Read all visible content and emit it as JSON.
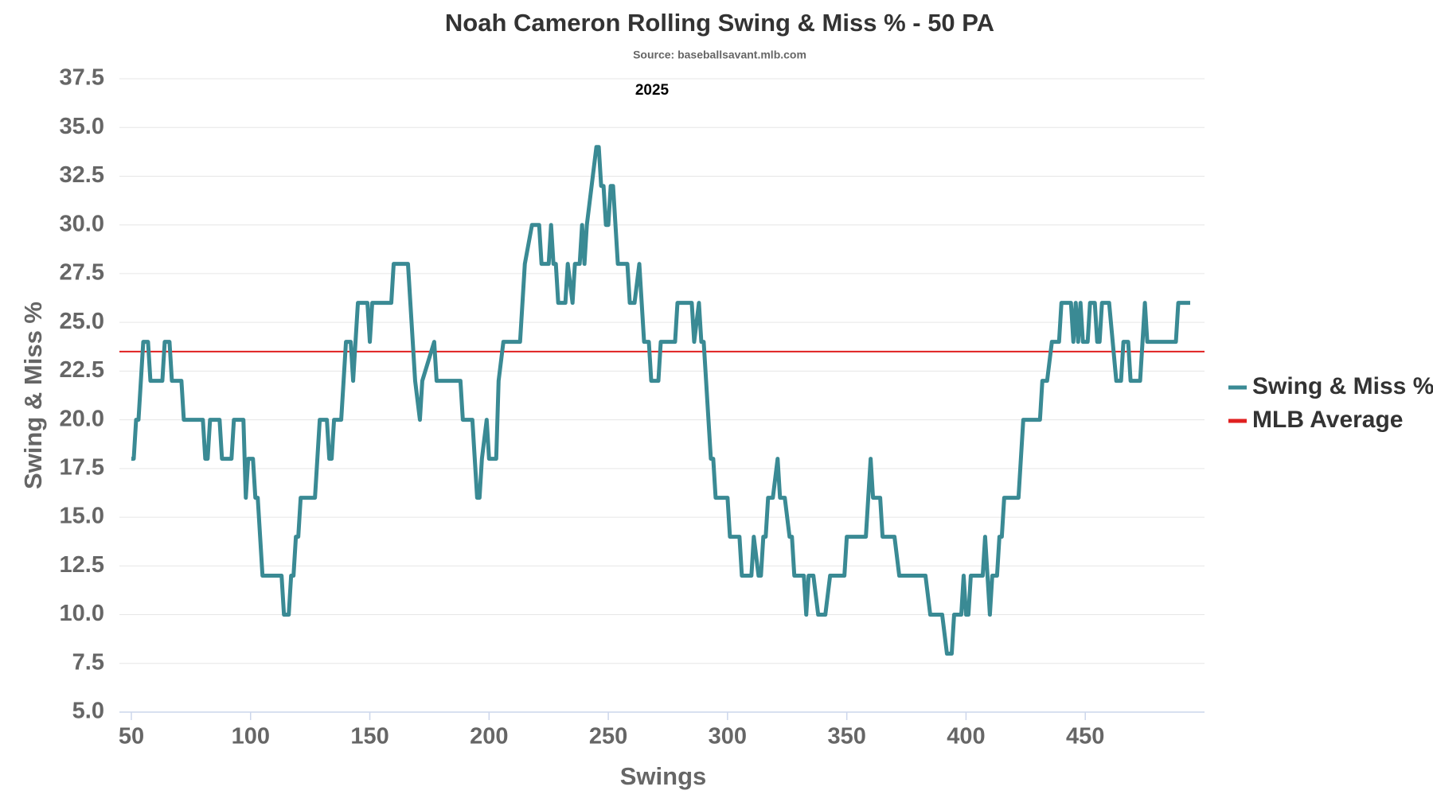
{
  "chart_data": {
    "type": "line",
    "title": "Noah Cameron Rolling Swing & Miss % - 50 PA",
    "subtitle": "Source: baseballsavant.mlb.com",
    "annotation": "2025",
    "x_label": "Swings",
    "y_label": "Swing & Miss %",
    "xlim": [
      45,
      500
    ],
    "ylim": [
      5,
      37.5
    ],
    "xticks": [
      50,
      100,
      150,
      200,
      250,
      300,
      350,
      400,
      450
    ],
    "yticks": [
      {
        "value": 5,
        "label": "5.0"
      },
      7.5,
      {
        "value": 10,
        "label": "10.0"
      },
      12.5,
      {
        "value": 15,
        "label": "15.0"
      },
      17.5,
      {
        "value": 20,
        "label": "20.0"
      },
      22.5,
      {
        "value": 25,
        "label": "25.0"
      },
      27.5,
      {
        "value": 30,
        "label": "30.0"
      },
      32.5,
      {
        "value": 35,
        "label": "35.0"
      },
      37.5
    ],
    "grid": true,
    "legend": "right",
    "series": [
      {
        "name": "Swing & Miss %",
        "color": "#3a8a94",
        "x": [
          50,
          51,
          52,
          53,
          55,
          57,
          58,
          63,
          64,
          66,
          67,
          71,
          72,
          80,
          81,
          82,
          83,
          87,
          88,
          92,
          93,
          97,
          98,
          99,
          101,
          102,
          103,
          105,
          113,
          114,
          116,
          117,
          118,
          119,
          120,
          121,
          127,
          129,
          132,
          133,
          134,
          135,
          138,
          140,
          142,
          143,
          144,
          145,
          149,
          150,
          151,
          159,
          160,
          166,
          169,
          171,
          172,
          177,
          178,
          188,
          189,
          193,
          195,
          196,
          197,
          199,
          200,
          203,
          204,
          206,
          213,
          215,
          218,
          221,
          222,
          225,
          226,
          227,
          228,
          229,
          232,
          233,
          235,
          236,
          238,
          239,
          240,
          241,
          243,
          245,
          246,
          247,
          248,
          249,
          250,
          251,
          252,
          254,
          258,
          259,
          261,
          263,
          265,
          267,
          268,
          271,
          272,
          278,
          279,
          285,
          286,
          288,
          289,
          290,
          291,
          293,
          294,
          295,
          300,
          301,
          305,
          306,
          310,
          311,
          313,
          314,
          315,
          316,
          317,
          319,
          321,
          322,
          324,
          326,
          327,
          328,
          332,
          333,
          334,
          336,
          338,
          341,
          343,
          349,
          350,
          358,
          359,
          360,
          361,
          364,
          365,
          370,
          372,
          383,
          385,
          390,
          392,
          394,
          395,
          398,
          399,
          400,
          401,
          402,
          407,
          408,
          410,
          411,
          413,
          414,
          415,
          416,
          422,
          424,
          431,
          432,
          434,
          436,
          439,
          440,
          444,
          445,
          446,
          447,
          448,
          449,
          451,
          452,
          454,
          455,
          456,
          457,
          460,
          463,
          465,
          466,
          468,
          469,
          473,
          475,
          476,
          488,
          489,
          494
        ],
        "values": [
          18,
          18,
          20,
          20,
          24,
          24,
          22,
          22,
          24,
          24,
          22,
          22,
          20,
          20,
          18,
          18,
          20,
          20,
          18,
          18,
          20,
          20,
          16,
          18,
          18,
          16,
          16,
          12,
          12,
          10,
          10,
          12,
          12,
          14,
          14,
          16,
          16,
          20,
          20,
          18,
          18,
          20,
          20,
          24,
          24,
          22,
          24,
          26,
          26,
          24,
          26,
          26,
          28,
          28,
          22,
          20,
          22,
          24,
          22,
          22,
          20,
          20,
          16,
          16,
          18,
          20,
          18,
          18,
          22,
          24,
          24,
          28,
          30,
          30,
          28,
          28,
          30,
          28,
          28,
          26,
          26,
          28,
          26,
          28,
          28,
          30,
          28,
          30,
          32,
          34,
          34,
          32,
          32,
          30,
          30,
          32,
          32,
          28,
          28,
          26,
          26,
          28,
          24,
          24,
          22,
          22,
          24,
          24,
          26,
          26,
          24,
          26,
          24,
          24,
          22,
          18,
          18,
          16,
          16,
          14,
          14,
          12,
          12,
          14,
          12,
          12,
          14,
          14,
          16,
          16,
          18,
          16,
          16,
          14,
          14,
          12,
          12,
          10,
          12,
          12,
          10,
          10,
          12,
          12,
          14,
          14,
          16,
          18,
          16,
          16,
          14,
          14,
          12,
          12,
          10,
          10,
          8,
          8,
          10,
          10,
          12,
          10,
          10,
          12,
          12,
          14,
          10,
          12,
          12,
          14,
          14,
          16,
          16,
          20,
          20,
          22,
          22,
          24,
          24,
          26,
          26,
          24,
          26,
          24,
          26,
          24,
          24,
          26,
          26,
          24,
          24,
          26,
          26,
          22,
          22,
          24,
          24,
          22,
          22,
          26,
          24,
          24,
          26,
          26
        ]
      }
    ],
    "reference_lines": [
      {
        "name": "MLB Average",
        "color": "#e02020",
        "value": 23.5
      }
    ]
  }
}
